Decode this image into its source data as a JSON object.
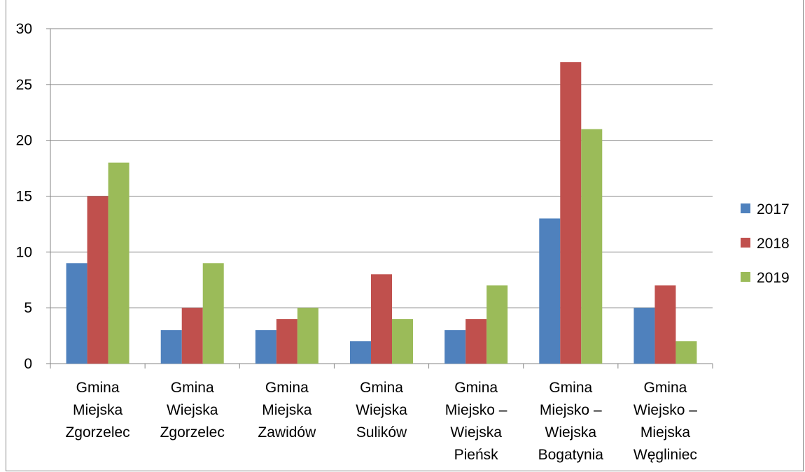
{
  "chart_data": {
    "type": "bar",
    "categories": [
      [
        "Gmina",
        "Miejska",
        "Zgorzelec"
      ],
      [
        "Gmina",
        "Wiejska",
        "Zgorzelec"
      ],
      [
        "Gmina",
        "Miejska",
        "Zawidów"
      ],
      [
        "Gmina",
        "Wiejska",
        "Sulików"
      ],
      [
        "Gmina",
        "Miejsko –",
        "Wiejska",
        "Pieńsk"
      ],
      [
        "Gmina",
        "Miejsko –",
        "Wiejska",
        "Bogatynia"
      ],
      [
        "Gmina",
        "Wiejsko –",
        "Miejska",
        "Węgliniec"
      ]
    ],
    "series": [
      {
        "name": "2017",
        "color": "#4F81BD",
        "values": [
          9,
          3,
          3,
          2,
          3,
          13,
          5
        ]
      },
      {
        "name": "2018",
        "color": "#C0504D",
        "values": [
          15,
          5,
          4,
          8,
          4,
          27,
          7
        ]
      },
      {
        "name": "2019",
        "color": "#9BBB59",
        "values": [
          18,
          9,
          5,
          4,
          7,
          21,
          2
        ]
      }
    ],
    "y_ticks": [
      "0",
      "5",
      "10",
      "15",
      "20",
      "25",
      "30"
    ],
    "ylim": [
      0,
      30
    ],
    "grid": true,
    "legend_position": "right"
  }
}
